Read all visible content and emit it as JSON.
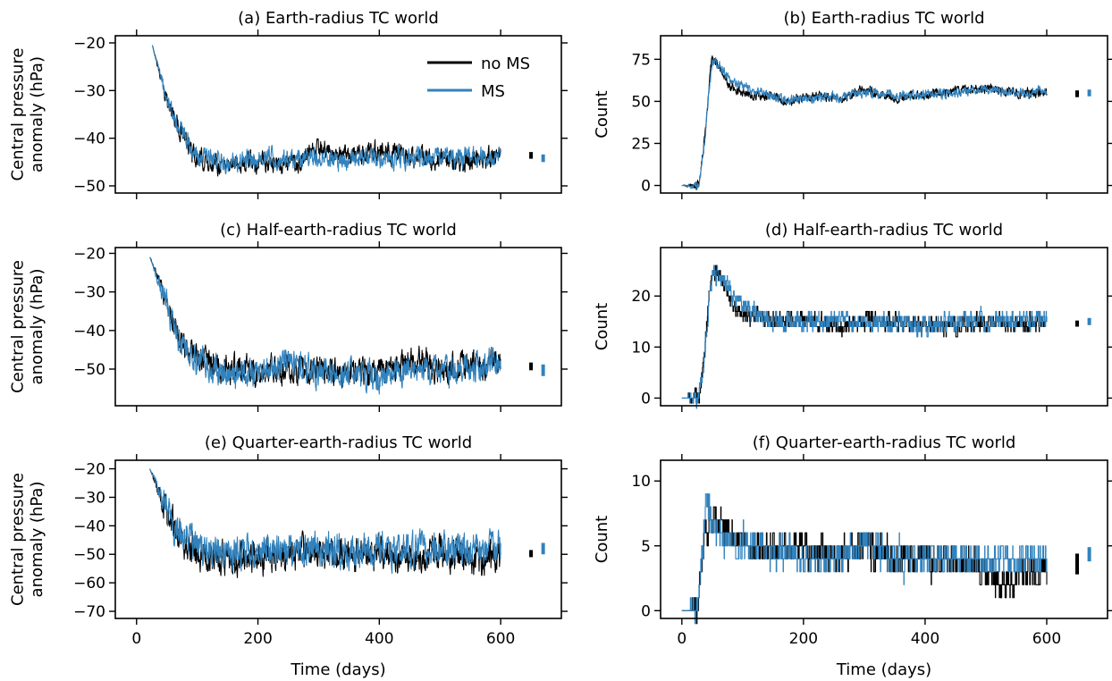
{
  "colors": {
    "no_ms": "#000000",
    "ms": "#3182bd"
  },
  "legend": {
    "position": "top-right of panel (a)",
    "entries": [
      "no MS",
      "MS"
    ]
  },
  "chart_data": [
    {
      "id": "a",
      "type": "line",
      "title": "(a) Earth-radius TC world",
      "xlabel": "",
      "ylabel": "Central pressure anomaly (hPa)",
      "xlim": [
        -35,
        700
      ],
      "ylim": [
        -51.5,
        -18.5
      ],
      "xticks": [
        0,
        200,
        400,
        600
      ],
      "xticklabels": [
        "",
        "",
        "",
        ""
      ],
      "yticks": [
        -50,
        -40,
        -30,
        -20
      ],
      "yticklabels": [
        "−50",
        "−40",
        "−30",
        "−20"
      ],
      "grid": false,
      "series": [
        {
          "name": "no MS",
          "color": "#000000",
          "x": [
            26,
            50,
            80,
            100,
            150,
            200,
            260,
            300,
            350,
            400,
            450,
            500,
            550,
            600
          ],
          "y": [
            -20.5,
            -32,
            -40.5,
            -44.5,
            -45.5,
            -45,
            -45.5,
            -42.5,
            -44,
            -42.5,
            -44,
            -44.5,
            -45,
            -43.5
          ],
          "noise": 1.6
        },
        {
          "name": "MS",
          "color": "#3182bd",
          "x": [
            26,
            50,
            80,
            100,
            150,
            200,
            260,
            300,
            350,
            400,
            450,
            500,
            550,
            600
          ],
          "y": [
            -20.5,
            -32,
            -40.5,
            -44,
            -45,
            -44,
            -44.5,
            -44,
            -45,
            -44,
            -44,
            -43.5,
            -44,
            -43.5
          ],
          "noise": 1.6
        }
      ],
      "range_markers": [
        {
          "series": "no MS",
          "x": 650,
          "y_low": -44.3,
          "y_high": -42.9
        },
        {
          "series": "MS",
          "x": 670,
          "y_low": -45,
          "y_high": -43.4
        }
      ]
    },
    {
      "id": "b",
      "type": "line",
      "title": "(b) Earth-radius TC world",
      "xlabel": "",
      "ylabel": "Count",
      "xlim": [
        -35,
        700
      ],
      "ylim": [
        -4.5,
        89
      ],
      "xticks": [
        0,
        200,
        400,
        600
      ],
      "xticklabels": [
        "",
        "",
        "",
        ""
      ],
      "yticks": [
        0,
        25,
        50,
        75
      ],
      "yticklabels": [
        "0",
        "25",
        "50",
        "75"
      ],
      "grid": false,
      "series": [
        {
          "name": "no MS",
          "color": "#000000",
          "x": [
            0,
            28,
            38,
            45,
            50,
            60,
            80,
            120,
            150,
            180,
            220,
            260,
            300,
            350,
            400,
            450,
            500,
            550,
            600
          ],
          "y": [
            0,
            0,
            30,
            60,
            78,
            72,
            58,
            54,
            52,
            50,
            54,
            51,
            57,
            52,
            54,
            56,
            58,
            55,
            55
          ],
          "noise": 2.2
        },
        {
          "name": "MS",
          "color": "#3182bd",
          "x": [
            0,
            28,
            38,
            45,
            50,
            60,
            80,
            120,
            150,
            180,
            220,
            260,
            300,
            350,
            400,
            450,
            500,
            550,
            600
          ],
          "y": [
            0,
            0,
            28,
            58,
            74,
            72,
            62,
            56,
            53,
            51,
            53,
            52,
            55,
            53,
            54,
            55,
            58,
            55,
            56
          ],
          "noise": 2.2
        }
      ],
      "range_markers": [
        {
          "series": "no MS",
          "x": 650,
          "y_low": 52.5,
          "y_high": 56.5
        },
        {
          "series": "MS",
          "x": 670,
          "y_low": 53,
          "y_high": 57
        }
      ]
    },
    {
      "id": "c",
      "type": "line",
      "title": "(c) Half-earth-radius TC world",
      "xlabel": "",
      "ylabel": "Central pressure anomaly (hPa)",
      "xlim": [
        -35,
        700
      ],
      "ylim": [
        -59.5,
        -18.5
      ],
      "xticks": [
        0,
        200,
        400,
        600
      ],
      "xticklabels": [
        "",
        "",
        "",
        ""
      ],
      "yticks": [
        -50,
        -40,
        -30,
        -20
      ],
      "yticklabels": [
        "−50",
        "−40",
        "−30",
        "−20"
      ],
      "grid": false,
      "series": [
        {
          "name": "no MS",
          "color": "#000000",
          "x": [
            22,
            50,
            70,
            100,
            150,
            200,
            250,
            300,
            350,
            400,
            450,
            500,
            550,
            600
          ],
          "y": [
            -21,
            -33,
            -43,
            -47,
            -50,
            -51,
            -50,
            -50,
            -51,
            -51,
            -48,
            -50,
            -49,
            -49
          ],
          "noise": 2.8
        },
        {
          "name": "MS",
          "color": "#3182bd",
          "x": [
            22,
            50,
            70,
            100,
            150,
            200,
            250,
            300,
            350,
            400,
            450,
            500,
            550,
            600
          ],
          "y": [
            -21,
            -33,
            -43,
            -48,
            -51,
            -51,
            -49,
            -51,
            -51,
            -52,
            -50,
            -51,
            -50,
            -48
          ],
          "noise": 2.8
        }
      ],
      "range_markers": [
        {
          "series": "no MS",
          "x": 650,
          "y_low": -50.3,
          "y_high": -48.3
        },
        {
          "series": "MS",
          "x": 670,
          "y_low": -51.8,
          "y_high": -48.8
        }
      ]
    },
    {
      "id": "d",
      "type": "line",
      "title": "(d) Half-earth-radius TC world",
      "xlabel": "",
      "ylabel": "Count",
      "xlim": [
        -35,
        700
      ],
      "ylim": [
        -1.5,
        29.5
      ],
      "xticks": [
        0,
        200,
        400,
        600
      ],
      "xticklabels": [
        "",
        "",
        "",
        ""
      ],
      "yticks": [
        0,
        10,
        20
      ],
      "yticklabels": [
        "0",
        "10",
        "20"
      ],
      "grid": false,
      "series": [
        {
          "name": "no MS",
          "color": "#000000",
          "x": [
            0,
            28,
            38,
            45,
            52,
            70,
            90,
            120,
            160,
            200,
            260,
            300,
            350,
            400,
            450,
            500,
            550,
            600
          ],
          "y": [
            0,
            0,
            10,
            20,
            25,
            22,
            17,
            16,
            15,
            15,
            14,
            15,
            15,
            14,
            14,
            15,
            15,
            15
          ],
          "noise": 1.4,
          "stepped": true
        },
        {
          "name": "MS",
          "color": "#3182bd",
          "x": [
            0,
            28,
            38,
            45,
            52,
            70,
            90,
            120,
            160,
            200,
            260,
            300,
            350,
            400,
            450,
            500,
            550,
            600
          ],
          "y": [
            0,
            0,
            9,
            19,
            25,
            23,
            19,
            17,
            15,
            15,
            15,
            15,
            15,
            14,
            15,
            15,
            15,
            15
          ],
          "noise": 1.4,
          "stepped": true
        }
      ],
      "range_markers": [
        {
          "series": "no MS",
          "x": 650,
          "y_low": 14,
          "y_high": 15.2
        },
        {
          "series": "MS",
          "x": 670,
          "y_low": 14.3,
          "y_high": 15.7
        }
      ]
    },
    {
      "id": "e",
      "type": "line",
      "title": "(e) Quarter-earth-radius TC world",
      "xlabel": "Time (days)",
      "ylabel": "Central pressure anomaly (hPa)",
      "xlim": [
        -35,
        700
      ],
      "ylim": [
        -72.5,
        -17
      ],
      "xticks": [
        0,
        200,
        400,
        600
      ],
      "xticklabels": [
        "0",
        "200",
        "400",
        "600"
      ],
      "yticks": [
        -70,
        -60,
        -50,
        -40,
        -30,
        -20
      ],
      "yticklabels": [
        "−70",
        "−60",
        "−50",
        "−40",
        "−30",
        "−20"
      ],
      "grid": false,
      "series": [
        {
          "name": "no MS",
          "color": "#000000",
          "x": [
            22,
            40,
            60,
            80,
            100,
            150,
            200,
            250,
            300,
            350,
            400,
            450,
            500,
            550,
            600
          ],
          "y": [
            -20,
            -30,
            -40,
            -46,
            -49,
            -51,
            -51,
            -50,
            -50,
            -51,
            -49,
            -50,
            -50,
            -51,
            -52
          ],
          "noise": 4.5
        },
        {
          "name": "MS",
          "color": "#3182bd",
          "x": [
            22,
            40,
            60,
            80,
            100,
            150,
            200,
            250,
            300,
            350,
            400,
            450,
            500,
            550,
            600
          ],
          "y": [
            -20,
            -30,
            -40,
            -45,
            -48,
            -49,
            -49,
            -49,
            -48,
            -49,
            -48,
            -48,
            -49,
            -48,
            -48
          ],
          "noise": 4.5
        }
      ],
      "range_markers": [
        {
          "series": "no MS",
          "x": 650,
          "y_low": -51,
          "y_high": -48.5
        },
        {
          "series": "MS",
          "x": 670,
          "y_low": -50,
          "y_high": -46
        }
      ]
    },
    {
      "id": "f",
      "type": "line",
      "title": "(f) Quarter-earth-radius TC world",
      "xlabel": "Time (days)",
      "ylabel": "Count",
      "xlim": [
        -35,
        700
      ],
      "ylim": [
        -0.6,
        11.6
      ],
      "xticks": [
        0,
        200,
        400,
        600
      ],
      "xticklabels": [
        "0",
        "200",
        "400",
        "600"
      ],
      "yticks": [
        0,
        5,
        10
      ],
      "yticklabels": [
        "0",
        "5",
        "10"
      ],
      "grid": false,
      "series": [
        {
          "name": "no MS",
          "color": "#000000",
          "x": [
            0,
            26,
            34,
            40,
            50,
            60,
            80,
            120,
            200,
            260,
            300,
            350,
            400,
            450,
            500,
            530,
            550,
            600
          ],
          "y": [
            0,
            0,
            4,
            6,
            7,
            7,
            6,
            5,
            5,
            4,
            5,
            4,
            4,
            4,
            3,
            2,
            3,
            3
          ],
          "noise": 0.9,
          "stepped": true
        },
        {
          "name": "MS",
          "color": "#3182bd",
          "x": [
            0,
            26,
            34,
            40,
            50,
            60,
            80,
            120,
            200,
            260,
            300,
            350,
            400,
            450,
            500,
            530,
            550,
            600
          ],
          "y": [
            0,
            0,
            5,
            8,
            7,
            6,
            5,
            5,
            4,
            4,
            5,
            4,
            4,
            4,
            4,
            4,
            4,
            4
          ],
          "noise": 0.9,
          "stepped": true
        }
      ],
      "range_markers": [
        {
          "series": "no MS",
          "x": 650,
          "y_low": 2.8,
          "y_high": 4.4
        },
        {
          "series": "MS",
          "x": 670,
          "y_low": 3.8,
          "y_high": 4.9
        }
      ]
    }
  ]
}
